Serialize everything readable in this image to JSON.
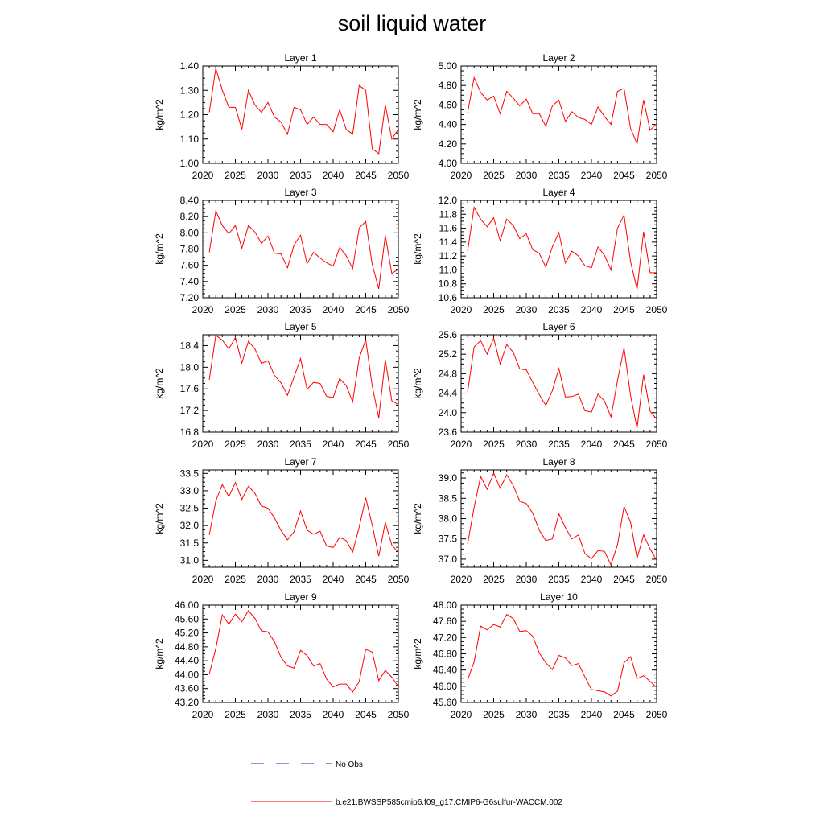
{
  "figure": {
    "title": "soil liquid water"
  },
  "legend": {
    "items": [
      {
        "label": "No Obs",
        "color": "#2020c0",
        "style": "dashed"
      },
      {
        "label": "b.e21.BWSSP585cmip6.f09_g17.CMIP6-G6sulfur-WACCM.002",
        "color": "#ff0000",
        "style": "solid"
      }
    ]
  },
  "chart_data": [
    {
      "type": "line",
      "title": "Layer 1",
      "xlabel": "",
      "ylabel": "kg/m^2",
      "xlim": [
        2020,
        2050
      ],
      "ylim": [
        1.0,
        1.4
      ],
      "grid": false,
      "xticks": [
        "2020",
        "2025",
        "2030",
        "2035",
        "2040",
        "2045",
        "2050"
      ],
      "yticks": [
        "1.00",
        "1.10",
        "1.20",
        "1.30",
        "1.40"
      ],
      "x": [
        2021,
        2022,
        2023,
        2024,
        2025,
        2026,
        2027,
        2028,
        2029,
        2030,
        2031,
        2032,
        2033,
        2034,
        2035,
        2036,
        2037,
        2038,
        2039,
        2040,
        2041,
        2042,
        2043,
        2044,
        2045,
        2046,
        2047,
        2048,
        2049,
        2050
      ],
      "series": [
        {
          "color": "#ff0000",
          "values": [
            1.21,
            1.39,
            1.3,
            1.23,
            1.23,
            1.14,
            1.3,
            1.24,
            1.21,
            1.25,
            1.19,
            1.17,
            1.12,
            1.23,
            1.22,
            1.16,
            1.19,
            1.16,
            1.16,
            1.13,
            1.22,
            1.14,
            1.12,
            1.32,
            1.3,
            1.06,
            1.04,
            1.24,
            1.1,
            1.14
          ]
        }
      ]
    },
    {
      "type": "line",
      "title": "Layer 2",
      "xlabel": "",
      "ylabel": "kg/m^2",
      "xlim": [
        2020,
        2050
      ],
      "ylim": [
        4.0,
        5.0
      ],
      "grid": false,
      "xticks": [
        "2020",
        "2025",
        "2030",
        "2035",
        "2040",
        "2045",
        "2050"
      ],
      "yticks": [
        "4.00",
        "4.20",
        "4.40",
        "4.60",
        "4.80",
        "5.00"
      ],
      "x": [
        2021,
        2022,
        2023,
        2024,
        2025,
        2026,
        2027,
        2028,
        2029,
        2030,
        2031,
        2032,
        2033,
        2034,
        2035,
        2036,
        2037,
        2038,
        2039,
        2040,
        2041,
        2042,
        2043,
        2044,
        2045,
        2046,
        2047,
        2048,
        2049,
        2050
      ],
      "series": [
        {
          "color": "#ff0000",
          "values": [
            4.52,
            4.88,
            4.73,
            4.65,
            4.69,
            4.51,
            4.74,
            4.67,
            4.59,
            4.66,
            4.51,
            4.51,
            4.38,
            4.59,
            4.65,
            4.43,
            4.53,
            4.47,
            4.45,
            4.4,
            4.58,
            4.48,
            4.4,
            4.74,
            4.77,
            4.36,
            4.2,
            4.65,
            4.34,
            4.41
          ]
        }
      ]
    },
    {
      "type": "line",
      "title": "Layer 3",
      "xlabel": "",
      "ylabel": "kg/m^2",
      "xlim": [
        2020,
        2050
      ],
      "ylim": [
        7.2,
        8.4
      ],
      "grid": false,
      "xticks": [
        "2020",
        "2025",
        "2030",
        "2035",
        "2040",
        "2045",
        "2050"
      ],
      "yticks": [
        "7.20",
        "7.40",
        "7.60",
        "7.80",
        "8.00",
        "8.20",
        "8.40"
      ],
      "x": [
        2021,
        2022,
        2023,
        2024,
        2025,
        2026,
        2027,
        2028,
        2029,
        2030,
        2031,
        2032,
        2033,
        2034,
        2035,
        2036,
        2037,
        2038,
        2039,
        2040,
        2041,
        2042,
        2043,
        2044,
        2045,
        2046,
        2047,
        2048,
        2049,
        2050
      ],
      "series": [
        {
          "color": "#ff0000",
          "values": [
            7.76,
            8.27,
            8.09,
            7.99,
            8.09,
            7.81,
            8.09,
            8.01,
            7.87,
            7.96,
            7.75,
            7.74,
            7.57,
            7.85,
            7.97,
            7.62,
            7.76,
            7.69,
            7.63,
            7.59,
            7.82,
            7.72,
            7.56,
            8.06,
            8.14,
            7.61,
            7.31,
            7.97,
            7.5,
            7.55
          ]
        }
      ]
    },
    {
      "type": "line",
      "title": "Layer 4",
      "xlabel": "",
      "ylabel": "kg/m^2",
      "xlim": [
        2020,
        2050
      ],
      "ylim": [
        10.6,
        12.0
      ],
      "grid": false,
      "xticks": [
        "2020",
        "2025",
        "2030",
        "2035",
        "2040",
        "2045",
        "2050"
      ],
      "yticks": [
        "10.6",
        "10.8",
        "11.0",
        "11.2",
        "11.4",
        "11.6",
        "11.8",
        "12.0"
      ],
      "x": [
        2021,
        2022,
        2023,
        2024,
        2025,
        2026,
        2027,
        2028,
        2029,
        2030,
        2031,
        2032,
        2033,
        2034,
        2035,
        2036,
        2037,
        2038,
        2039,
        2040,
        2041,
        2042,
        2043,
        2044,
        2045,
        2046,
        2047,
        2048,
        2049,
        2050
      ],
      "series": [
        {
          "color": "#ff0000",
          "values": [
            11.27,
            11.9,
            11.73,
            11.62,
            11.75,
            11.42,
            11.73,
            11.64,
            11.45,
            11.52,
            11.29,
            11.24,
            11.04,
            11.33,
            11.54,
            11.1,
            11.27,
            11.2,
            11.06,
            11.03,
            11.33,
            11.21,
            11.0,
            11.6,
            11.79,
            11.12,
            10.72,
            11.55,
            10.96,
            10.96
          ]
        }
      ]
    },
    {
      "type": "line",
      "title": "Layer 5",
      "xlabel": "",
      "ylabel": "kg/m^2",
      "xlim": [
        2020,
        2050
      ],
      "ylim": [
        16.8,
        18.6
      ],
      "grid": false,
      "xticks": [
        "2020",
        "2025",
        "2030",
        "2035",
        "2040",
        "2045",
        "2050"
      ],
      "yticks": [
        "16.8",
        "17.2",
        "17.6",
        "18.0",
        "18.4"
      ],
      "x": [
        2021,
        2022,
        2023,
        2024,
        2025,
        2026,
        2027,
        2028,
        2029,
        2030,
        2031,
        2032,
        2033,
        2034,
        2035,
        2036,
        2037,
        2038,
        2039,
        2040,
        2041,
        2042,
        2043,
        2044,
        2045,
        2046,
        2047,
        2048,
        2049,
        2050
      ],
      "series": [
        {
          "color": "#ff0000",
          "values": [
            17.77,
            18.59,
            18.5,
            18.34,
            18.55,
            18.08,
            18.48,
            18.34,
            18.07,
            18.12,
            17.85,
            17.71,
            17.48,
            17.82,
            18.16,
            17.59,
            17.72,
            17.7,
            17.46,
            17.44,
            17.79,
            17.66,
            17.36,
            18.17,
            18.51,
            17.65,
            17.06,
            18.14,
            17.38,
            17.31
          ]
        }
      ]
    },
    {
      "type": "line",
      "title": "Layer 6",
      "xlabel": "",
      "ylabel": "kg/m^2",
      "xlim": [
        2020,
        2050
      ],
      "ylim": [
        23.6,
        25.6
      ],
      "grid": false,
      "xticks": [
        "2020",
        "2025",
        "2030",
        "2035",
        "2040",
        "2045",
        "2050"
      ],
      "yticks": [
        "23.6",
        "24.0",
        "24.4",
        "24.8",
        "25.2",
        "25.6"
      ],
      "x": [
        2021,
        2022,
        2023,
        2024,
        2025,
        2026,
        2027,
        2028,
        2029,
        2030,
        2031,
        2032,
        2033,
        2034,
        2035,
        2036,
        2037,
        2038,
        2039,
        2040,
        2041,
        2042,
        2043,
        2044,
        2045,
        2046,
        2047,
        2048,
        2049,
        2050
      ],
      "series": [
        {
          "color": "#ff0000",
          "values": [
            24.42,
            25.35,
            25.48,
            25.2,
            25.53,
            25.0,
            25.4,
            25.24,
            24.9,
            24.88,
            24.62,
            24.37,
            24.15,
            24.45,
            24.91,
            24.32,
            24.33,
            24.38,
            24.04,
            24.01,
            24.38,
            24.24,
            23.91,
            24.66,
            25.33,
            24.35,
            23.68,
            24.78,
            24.03,
            23.87
          ]
        }
      ]
    },
    {
      "type": "line",
      "title": "Layer 7",
      "xlabel": "",
      "ylabel": "kg/m^2",
      "xlim": [
        2020,
        2050
      ],
      "ylim": [
        30.8,
        33.6
      ],
      "grid": false,
      "xticks": [
        "2020",
        "2025",
        "2030",
        "2035",
        "2040",
        "2045",
        "2050"
      ],
      "yticks": [
        "31.0",
        "31.5",
        "32.0",
        "32.5",
        "33.0",
        "33.5"
      ],
      "x": [
        2021,
        2022,
        2023,
        2024,
        2025,
        2026,
        2027,
        2028,
        2029,
        2030,
        2031,
        2032,
        2033,
        2034,
        2035,
        2036,
        2037,
        2038,
        2039,
        2040,
        2041,
        2042,
        2043,
        2044,
        2045,
        2046,
        2047,
        2048,
        2049,
        2050
      ],
      "series": [
        {
          "color": "#ff0000",
          "values": [
            31.73,
            32.71,
            33.18,
            32.83,
            33.24,
            32.75,
            33.13,
            32.93,
            32.56,
            32.5,
            32.22,
            31.86,
            31.59,
            31.82,
            32.42,
            31.87,
            31.75,
            31.84,
            31.41,
            31.37,
            31.66,
            31.57,
            31.24,
            31.96,
            32.8,
            32.01,
            31.12,
            32.09,
            31.44,
            31.23
          ]
        }
      ]
    },
    {
      "type": "line",
      "title": "Layer 8",
      "xlabel": "",
      "ylabel": "kg/m^2",
      "xlim": [
        2020,
        2050
      ],
      "ylim": [
        36.8,
        39.2
      ],
      "grid": false,
      "xticks": [
        "2020",
        "2025",
        "2030",
        "2035",
        "2040",
        "2045",
        "2050"
      ],
      "yticks": [
        "37.0",
        "37.5",
        "38.0",
        "38.5",
        "39.0"
      ],
      "x": [
        2021,
        2022,
        2023,
        2024,
        2025,
        2026,
        2027,
        2028,
        2029,
        2030,
        2031,
        2032,
        2033,
        2034,
        2035,
        2036,
        2037,
        2038,
        2039,
        2040,
        2041,
        2042,
        2043,
        2044,
        2045,
        2046,
        2047,
        2048,
        2049,
        2050
      ],
      "series": [
        {
          "color": "#ff0000",
          "values": [
            37.38,
            38.28,
            39.04,
            38.72,
            39.12,
            38.75,
            39.08,
            38.82,
            38.43,
            38.37,
            38.13,
            37.71,
            37.46,
            37.5,
            38.12,
            37.78,
            37.5,
            37.6,
            37.14,
            37.01,
            37.21,
            37.19,
            36.86,
            37.36,
            38.3,
            37.91,
            37.02,
            37.6,
            37.25,
            36.97
          ]
        }
      ]
    },
    {
      "type": "line",
      "title": "Layer 9",
      "xlabel": "",
      "ylabel": "kg/m^2",
      "xlim": [
        2020,
        2050
      ],
      "ylim": [
        43.2,
        46.0
      ],
      "grid": false,
      "xticks": [
        "2020",
        "2025",
        "2030",
        "2035",
        "2040",
        "2045",
        "2050"
      ],
      "yticks": [
        "43.20",
        "43.60",
        "44.00",
        "44.40",
        "44.80",
        "45.20",
        "45.60",
        "46.00"
      ],
      "x": [
        2021,
        2022,
        2023,
        2024,
        2025,
        2026,
        2027,
        2028,
        2029,
        2030,
        2031,
        2032,
        2033,
        2034,
        2035,
        2036,
        2037,
        2038,
        2039,
        2040,
        2041,
        2042,
        2043,
        2044,
        2045,
        2046,
        2047,
        2048,
        2049,
        2050
      ],
      "series": [
        {
          "color": "#ff0000",
          "values": [
            44.02,
            44.75,
            45.72,
            45.45,
            45.74,
            45.52,
            45.84,
            45.62,
            45.26,
            45.23,
            44.95,
            44.5,
            44.25,
            44.19,
            44.7,
            44.55,
            44.25,
            44.32,
            43.87,
            43.65,
            43.73,
            43.73,
            43.5,
            43.8,
            44.73,
            44.65,
            43.83,
            44.12,
            43.93,
            43.66
          ]
        }
      ]
    },
    {
      "type": "line",
      "title": "Layer 10",
      "xlabel": "",
      "ylabel": "kg/m^2",
      "xlim": [
        2020,
        2050
      ],
      "ylim": [
        45.6,
        48.0
      ],
      "grid": false,
      "xticks": [
        "2020",
        "2025",
        "2030",
        "2035",
        "2040",
        "2045",
        "2050"
      ],
      "yticks": [
        "45.60",
        "46.00",
        "46.40",
        "46.80",
        "47.20",
        "47.60",
        "48.00"
      ],
      "x": [
        2021,
        2022,
        2023,
        2024,
        2025,
        2026,
        2027,
        2028,
        2029,
        2030,
        2031,
        2032,
        2033,
        2034,
        2035,
        2036,
        2037,
        2038,
        2039,
        2040,
        2041,
        2042,
        2043,
        2044,
        2045,
        2046,
        2047,
        2048,
        2049,
        2050
      ],
      "series": [
        {
          "color": "#ff0000",
          "values": [
            46.16,
            46.6,
            47.48,
            47.39,
            47.52,
            47.46,
            47.77,
            47.67,
            47.35,
            47.37,
            47.23,
            46.82,
            46.58,
            46.41,
            46.76,
            46.7,
            46.51,
            46.56,
            46.23,
            45.92,
            45.89,
            45.86,
            45.76,
            45.88,
            46.58,
            46.73,
            46.19,
            46.26,
            46.12,
            45.97
          ]
        }
      ]
    }
  ]
}
